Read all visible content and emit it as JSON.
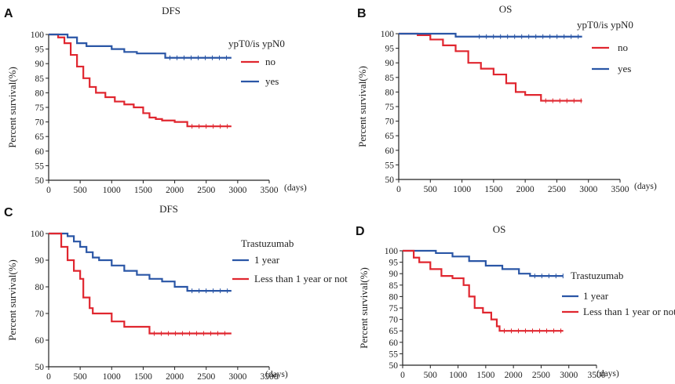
{
  "chart_data": [
    {
      "type": "line",
      "panel_label": "A",
      "title": "DFS",
      "ylabel": "Percent survival(%)",
      "xlabel": "(days)",
      "xlim": [
        0,
        3500
      ],
      "ylim": [
        50,
        100
      ],
      "xticks": [
        0,
        500,
        1000,
        1500,
        2000,
        2500,
        3000,
        3500
      ],
      "yticks": [
        50,
        55,
        60,
        65,
        70,
        75,
        80,
        85,
        90,
        95,
        100
      ],
      "legend_title": "ypT0/is ypN0",
      "legend_position": "right",
      "series": [
        {
          "name": "no",
          "color": "#e0262f",
          "x": [
            0,
            150,
            250,
            350,
            450,
            550,
            650,
            750,
            900,
            1050,
            1200,
            1350,
            1500,
            1600,
            1700,
            1800,
            1900,
            2000,
            2100,
            2200,
            2900
          ],
          "y": [
            100,
            99,
            97,
            93,
            89,
            85,
            82,
            80,
            78.5,
            77,
            76,
            75,
            73,
            71.5,
            71,
            70.5,
            70.5,
            70,
            70,
            68.5,
            68.5
          ]
        },
        {
          "name": "yes",
          "color": "#2a56a6",
          "x": [
            0,
            200,
            300,
            450,
            600,
            800,
            1000,
            1200,
            1400,
            1800,
            1850,
            2900
          ],
          "y": [
            100,
            100,
            99,
            97,
            96,
            96,
            95,
            94,
            93.5,
            93.5,
            92,
            92
          ]
        }
      ]
    },
    {
      "type": "line",
      "panel_label": "B",
      "title": "OS",
      "ylabel": "Percent survival(%)",
      "xlabel": "(days)",
      "xlim": [
        0,
        3500
      ],
      "ylim": [
        50,
        100
      ],
      "xticks": [
        0,
        500,
        1000,
        1500,
        2000,
        2500,
        3000,
        3500
      ],
      "yticks": [
        50,
        55,
        60,
        65,
        70,
        75,
        80,
        85,
        90,
        95,
        100
      ],
      "legend_title": "ypT0/is ypN0",
      "legend_position": "right",
      "series": [
        {
          "name": "no",
          "color": "#e0262f",
          "x": [
            0,
            300,
            500,
            700,
            900,
            1100,
            1300,
            1500,
            1700,
            1850,
            2000,
            2200,
            2250,
            2900
          ],
          "y": [
            100,
            99.5,
            98,
            96,
            94,
            90,
            88,
            86,
            83,
            80,
            79,
            79,
            77,
            77
          ]
        },
        {
          "name": "yes",
          "color": "#2a56a6",
          "x": [
            0,
            400,
            800,
            900,
            1200,
            2900
          ],
          "y": [
            100,
            100,
            100,
            99,
            99,
            99
          ]
        }
      ]
    },
    {
      "type": "line",
      "panel_label": "C",
      "title": "DFS",
      "ylabel": "Percent survival(%)",
      "xlabel": "(days)",
      "xlim": [
        0,
        3500
      ],
      "ylim": [
        50,
        100
      ],
      "xticks": [
        0,
        500,
        1000,
        1500,
        2000,
        2500,
        3000,
        3500
      ],
      "yticks": [
        50,
        60,
        70,
        80,
        90,
        100
      ],
      "legend_title": "Trastuzumab",
      "legend_position": "right",
      "series": [
        {
          "name": "1 year",
          "color": "#2a56a6",
          "x": [
            0,
            200,
            300,
            400,
            500,
            600,
            700,
            800,
            1000,
            1200,
            1400,
            1600,
            1800,
            2000,
            2200,
            2900
          ],
          "y": [
            100,
            100,
            99,
            97,
            95,
            93,
            91,
            90,
            88,
            86,
            84.5,
            83,
            82,
            80,
            78.5,
            78.5
          ]
        },
        {
          "name": "Less than 1 year or not",
          "color": "#e0262f",
          "x": [
            0,
            200,
            300,
            400,
            500,
            550,
            650,
            700,
            900,
            1000,
            1200,
            1600,
            2900
          ],
          "y": [
            100,
            95,
            90,
            86,
            83,
            76,
            72,
            70,
            70,
            67,
            65,
            62.5,
            62.5
          ]
        }
      ]
    },
    {
      "type": "line",
      "panel_label": "D",
      "title": "OS",
      "ylabel": "Percent survival(%)",
      "xlabel": "(days)",
      "xlim": [
        0,
        3500
      ],
      "ylim": [
        50,
        100
      ],
      "xticks": [
        0,
        500,
        1000,
        1500,
        2000,
        2500,
        3000,
        3500
      ],
      "yticks": [
        50,
        55,
        60,
        65,
        70,
        75,
        80,
        85,
        90,
        95,
        100
      ],
      "legend_title": "Trastuzumab",
      "legend_position": "right",
      "series": [
        {
          "name": "1 year",
          "color": "#2a56a6",
          "x": [
            0,
            300,
            600,
            900,
            1200,
            1500,
            1800,
            2100,
            2300,
            2900
          ],
          "y": [
            100,
            100,
            99,
            97.5,
            95.5,
            93.5,
            92,
            90,
            89,
            89
          ]
        },
        {
          "name": "Less than 1 year or not",
          "color": "#e0262f",
          "x": [
            0,
            200,
            300,
            500,
            700,
            900,
            1100,
            1200,
            1300,
            1450,
            1600,
            1700,
            1750,
            2900
          ],
          "y": [
            100,
            97,
            95,
            92,
            89,
            88,
            85,
            80,
            75,
            73,
            70,
            67,
            65,
            65
          ]
        }
      ]
    }
  ]
}
